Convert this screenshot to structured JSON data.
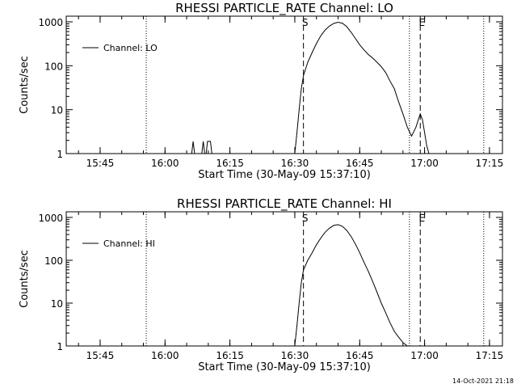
{
  "footer": {
    "timestamp": "14-Oct-2021 21:18"
  },
  "colors": {
    "line": "#000000",
    "background": "#ffffff"
  },
  "chart_data": [
    {
      "type": "line",
      "title": "RHESSI PARTICLE_RATE Channel: LO",
      "xlabel": "Start Time (30-May-09 15:37:10)",
      "ylabel": "Counts/sec",
      "yscale": "log",
      "ylim": [
        1,
        1000
      ],
      "xlim": [
        "15:37:10",
        "17:18:00"
      ],
      "x_ticks": [
        "15:45",
        "16:00",
        "16:15",
        "16:30",
        "16:45",
        "17:00",
        "17:15"
      ],
      "y_ticks": [
        "1",
        "10",
        "100",
        "1000"
      ],
      "legend": {
        "position": "top-left",
        "entries": [
          "Channel: LO"
        ]
      },
      "markers": [
        {
          "label": "S",
          "time": "16:32:00",
          "style": "dashed"
        },
        {
          "label": "E",
          "time": "16:59:00",
          "style": "dashed"
        }
      ],
      "reference_lines": [
        {
          "time": "15:55:40",
          "style": "dotted"
        },
        {
          "time": "16:56:30",
          "style": "dotted"
        },
        {
          "time": "17:13:40",
          "style": "dotted"
        }
      ],
      "series": [
        {
          "name": "Channel: LO",
          "segments": [
            [
              [
                "16:06:10",
                1
              ],
              [
                "16:06:30",
                1.9
              ],
              [
                "16:06:50",
                1
              ]
            ],
            [
              [
                "16:08:30",
                1
              ],
              [
                "16:08:50",
                1.9
              ],
              [
                "16:09:10",
                1
              ]
            ],
            [
              [
                "16:09:30",
                1
              ],
              [
                "16:09:50",
                1.9
              ],
              [
                "16:10:10",
                1.9
              ],
              [
                "16:10:30",
                1.9
              ],
              [
                "16:10:50",
                1
              ]
            ],
            [
              [
                "16:30:00",
                1
              ],
              [
                "16:30:30",
                3
              ],
              [
                "16:31:00",
                10
              ],
              [
                "16:31:30",
                30
              ],
              [
                "16:32:00",
                60
              ],
              [
                "16:33:00",
                120
              ],
              [
                "16:34:00",
                200
              ],
              [
                "16:35:00",
                320
              ],
              [
                "16:36:00",
                480
              ],
              [
                "16:37:00",
                650
              ],
              [
                "16:38:00",
                800
              ],
              [
                "16:39:00",
                920
              ],
              [
                "16:40:00",
                980
              ],
              [
                "16:41:00",
                930
              ],
              [
                "16:42:00",
                780
              ],
              [
                "16:43:00",
                580
              ],
              [
                "16:44:00",
                420
              ],
              [
                "16:45:00",
                300
              ],
              [
                "16:46:00",
                230
              ],
              [
                "16:47:00",
                180
              ],
              [
                "16:48:00",
                150
              ],
              [
                "16:49:00",
                120
              ],
              [
                "16:50:00",
                95
              ],
              [
                "16:51:00",
                70
              ],
              [
                "16:52:00",
                45
              ],
              [
                "16:53:00",
                30
              ],
              [
                "16:54:00",
                15
              ],
              [
                "16:55:00",
                8
              ],
              [
                "16:56:00",
                4
              ],
              [
                "16:57:00",
                2.5
              ],
              [
                "16:58:00",
                4
              ],
              [
                "16:59:00",
                8
              ],
              [
                "16:59:30",
                6
              ],
              [
                "17:00:00",
                3
              ],
              [
                "17:00:30",
                1.5
              ],
              [
                "17:01:00",
                1
              ]
            ]
          ]
        }
      ]
    },
    {
      "type": "line",
      "title": "RHESSI PARTICLE_RATE Channel: HI",
      "xlabel": "Start Time (30-May-09 15:37:10)",
      "ylabel": "Counts/sec",
      "yscale": "log",
      "ylim": [
        1,
        1000
      ],
      "xlim": [
        "15:37:10",
        "17:18:00"
      ],
      "x_ticks": [
        "15:45",
        "16:00",
        "16:15",
        "16:30",
        "16:45",
        "17:00",
        "17:15"
      ],
      "y_ticks": [
        "1",
        "10",
        "100",
        "1000"
      ],
      "legend": {
        "position": "top-left",
        "entries": [
          "Channel: HI"
        ]
      },
      "markers": [
        {
          "label": "S",
          "time": "16:32:00",
          "style": "dashed"
        },
        {
          "label": "E",
          "time": "16:59:00",
          "style": "dashed"
        }
      ],
      "reference_lines": [
        {
          "time": "15:55:40",
          "style": "dotted"
        },
        {
          "time": "16:56:30",
          "style": "dotted"
        },
        {
          "time": "17:13:40",
          "style": "dotted"
        }
      ],
      "series": [
        {
          "name": "Channel: HI",
          "segments": [
            [
              [
                "16:30:00",
                1
              ],
              [
                "16:30:30",
                3
              ],
              [
                "16:31:00",
                10
              ],
              [
                "16:31:30",
                30
              ],
              [
                "16:32:00",
                60
              ],
              [
                "16:33:00",
                100
              ],
              [
                "16:34:00",
                150
              ],
              [
                "16:35:00",
                230
              ],
              [
                "16:36:00",
                330
              ],
              [
                "16:37:00",
                450
              ],
              [
                "16:38:00",
                560
              ],
              [
                "16:39:00",
                650
              ],
              [
                "16:40:00",
                680
              ],
              [
                "16:41:00",
                620
              ],
              [
                "16:42:00",
                500
              ],
              [
                "16:43:00",
                360
              ],
              [
                "16:44:00",
                240
              ],
              [
                "16:45:00",
                150
              ],
              [
                "16:46:00",
                90
              ],
              [
                "16:47:00",
                55
              ],
              [
                "16:48:00",
                32
              ],
              [
                "16:49:00",
                18
              ],
              [
                "16:50:00",
                10
              ],
              [
                "16:51:00",
                6
              ],
              [
                "16:52:00",
                3.5
              ],
              [
                "16:53:00",
                2.2
              ],
              [
                "16:54:00",
                1.6
              ],
              [
                "16:55:00",
                1.2
              ],
              [
                "16:56:00",
                1
              ]
            ]
          ]
        }
      ]
    }
  ]
}
